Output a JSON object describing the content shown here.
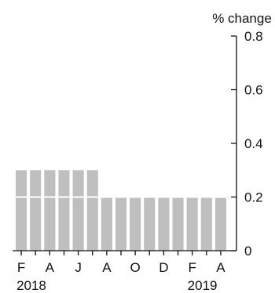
{
  "chart_data": {
    "type": "bar",
    "categories": [
      "2018-02",
      "2018-03",
      "2018-04",
      "2018-05",
      "2018-06",
      "2018-07",
      "2018-08",
      "2018-09",
      "2018-10",
      "2018-11",
      "2018-12",
      "2019-01",
      "2019-02",
      "2019-03",
      "2019-04"
    ],
    "values": [
      0.3,
      0.3,
      0.3,
      0.3,
      0.3,
      0.3,
      0.2,
      0.2,
      0.2,
      0.2,
      0.2,
      0.2,
      0.2,
      0.2,
      0.2
    ],
    "title": "",
    "xlabel": "",
    "ylabel": "% change",
    "ylim": [
      0,
      0.8
    ],
    "yticks": [
      "0",
      "0.2",
      "0.4",
      "0.6",
      "0.8"
    ],
    "xtick_labels": [
      {
        "category": "2018-02",
        "label": "F"
      },
      {
        "category": "2018-04",
        "label": "A"
      },
      {
        "category": "2018-06",
        "label": "J"
      },
      {
        "category": "2018-08",
        "label": "A"
      },
      {
        "category": "2018-10",
        "label": "O"
      },
      {
        "category": "2018-12",
        "label": "D"
      },
      {
        "category": "2019-02",
        "label": "F"
      },
      {
        "category": "2019-04",
        "label": "A"
      }
    ],
    "year_labels": [
      {
        "category": "2018-02",
        "label": "2018"
      },
      {
        "category": "2019-02",
        "label": "2019"
      }
    ],
    "gridline_at": 0.2,
    "grid": false,
    "y_axis_position": "right",
    "colors": {
      "bar": "#bfbfbf",
      "axis": "#111111",
      "gridline": "#ffffff"
    }
  }
}
